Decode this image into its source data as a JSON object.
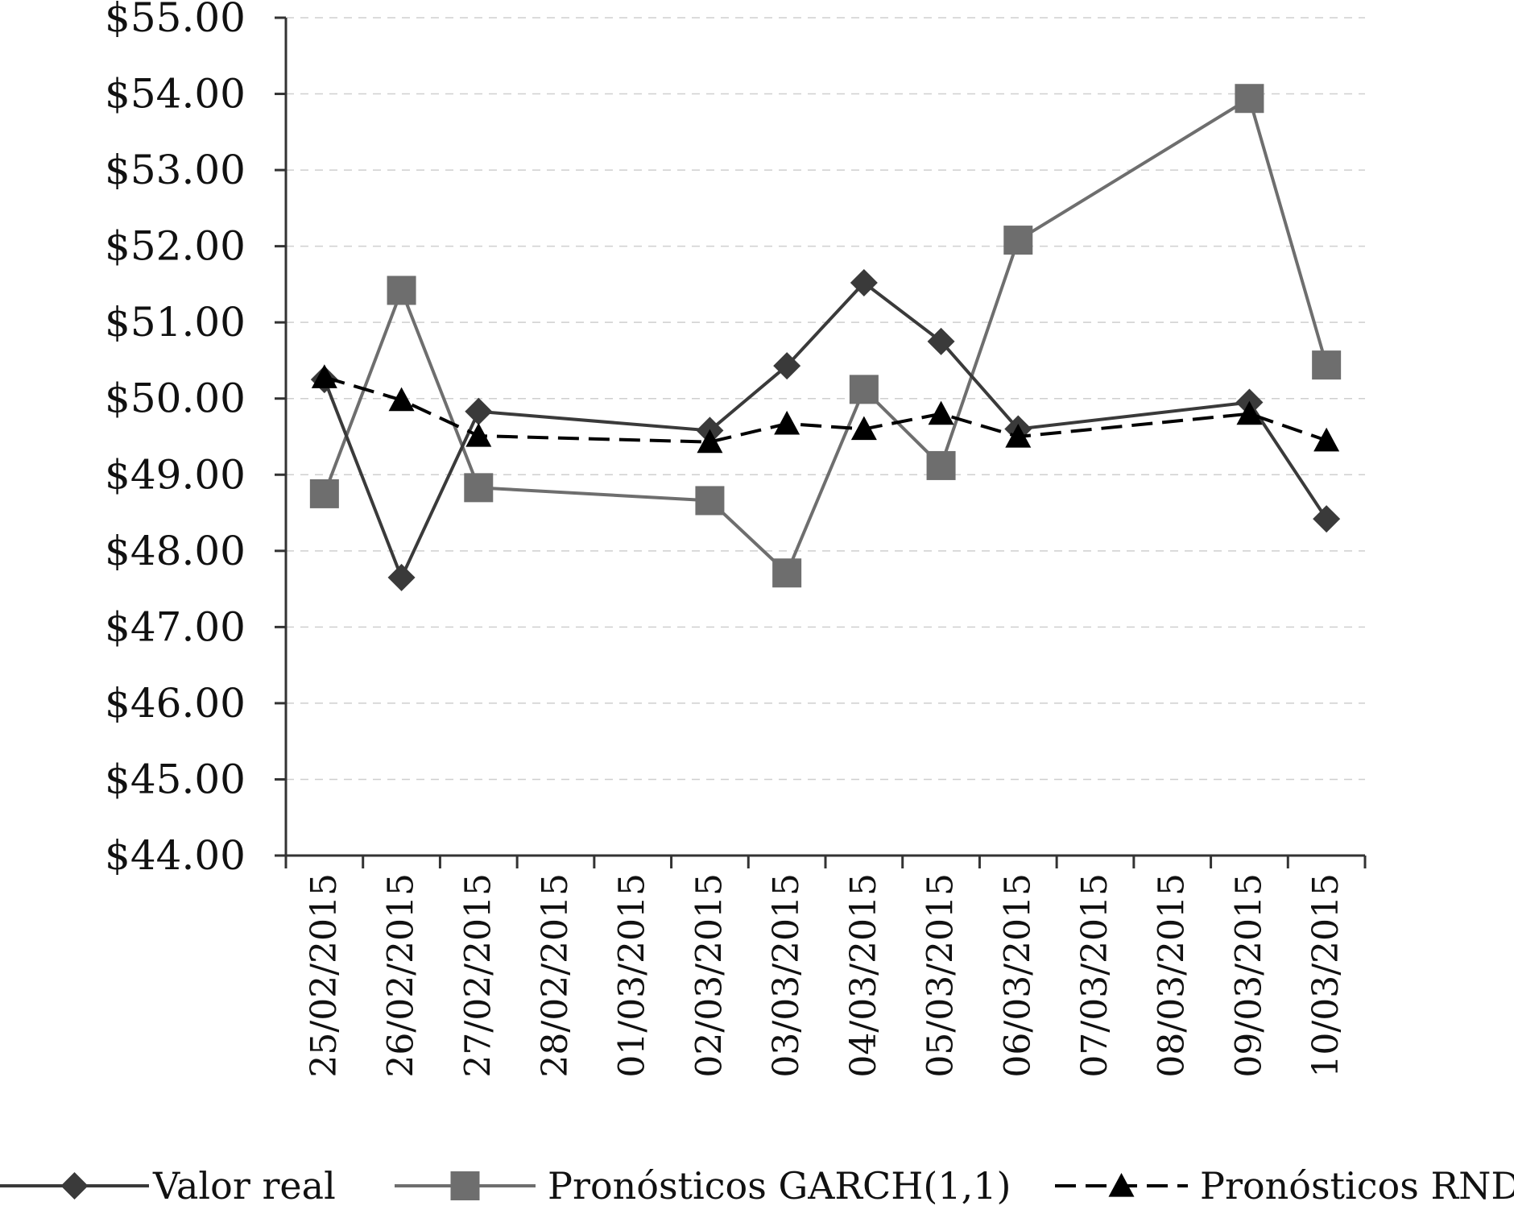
{
  "chart_data": {
    "type": "line",
    "title": "",
    "xlabel": "",
    "ylabel": "",
    "categories": [
      "25/02/2015",
      "26/02/2015",
      "27/02/2015",
      "28/02/2015",
      "01/03/2015",
      "02/03/2015",
      "03/03/2015",
      "04/03/2015",
      "05/03/2015",
      "06/03/2015",
      "07/03/2015",
      "08/03/2015",
      "09/03/2015",
      "10/03/2015"
    ],
    "ylim": [
      44,
      55
    ],
    "yticks": [
      44,
      45,
      46,
      47,
      48,
      49,
      50,
      51,
      52,
      53,
      54,
      55
    ],
    "ytick_labels": [
      "$44.00",
      "$45.00",
      "$46.00",
      "$47.00",
      "$48.00",
      "$49.00",
      "$50.00",
      "$51.00",
      "$52.00",
      "$53.00",
      "$54.00",
      "$55.00"
    ],
    "grid": "horizontal-dashed",
    "legend_position": "bottom",
    "series": [
      {
        "name": "Valor real",
        "marker": "diamond",
        "line": "solid",
        "color": "#3a3a3a",
        "values": [
          50.25,
          47.65,
          49.83,
          null,
          null,
          49.58,
          50.43,
          51.52,
          50.75,
          49.6,
          null,
          null,
          49.95,
          48.42
        ]
      },
      {
        "name": "Pronósticos GARCH(1,1)",
        "marker": "square",
        "line": "solid",
        "color": "#6e6e6e",
        "values": [
          48.75,
          51.42,
          48.83,
          null,
          null,
          48.66,
          47.71,
          50.12,
          49.12,
          52.08,
          null,
          null,
          53.94,
          50.44
        ]
      },
      {
        "name": "Pronósticos RND",
        "marker": "triangle",
        "line": "dashed",
        "color": "#000000",
        "values": [
          50.28,
          49.98,
          49.51,
          null,
          null,
          49.43,
          49.67,
          49.6,
          49.8,
          49.5,
          null,
          null,
          49.8,
          49.45
        ]
      }
    ]
  }
}
